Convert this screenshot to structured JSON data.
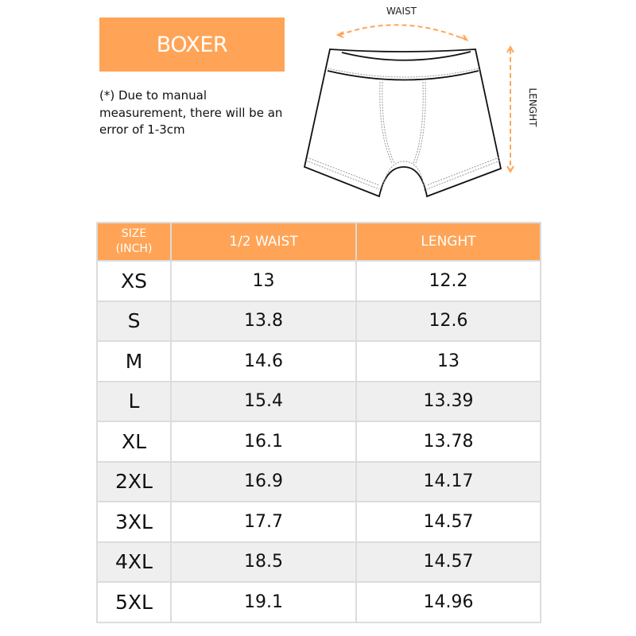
{
  "title": "BOXER",
  "note": "(*) Due to manual measurement, there will be an error of 1-3cm",
  "illustration": {
    "waist_label": "WAIST",
    "length_label": "LENGHT"
  },
  "colors": {
    "accent": "#ffa456",
    "alt_row": "#efefef",
    "border": "#dcdcdc"
  },
  "table": {
    "headers": {
      "size_line1": "SIZE",
      "size_line2": "(INCH)",
      "waist": "1/2 WAIST",
      "length": "LENGHT"
    },
    "rows": [
      {
        "size": "XS",
        "waist": "13",
        "length": "12.2"
      },
      {
        "size": "S",
        "waist": "13.8",
        "length": "12.6"
      },
      {
        "size": "M",
        "waist": "14.6",
        "length": "13"
      },
      {
        "size": "L",
        "waist": "15.4",
        "length": "13.39"
      },
      {
        "size": "XL",
        "waist": "16.1",
        "length": "13.78"
      },
      {
        "size": "2XL",
        "waist": "16.9",
        "length": "14.17"
      },
      {
        "size": "3XL",
        "waist": "17.7",
        "length": "14.57"
      },
      {
        "size": "4XL",
        "waist": "18.5",
        "length": "14.57"
      },
      {
        "size": "5XL",
        "waist": "19.1",
        "length": "14.96"
      }
    ]
  }
}
